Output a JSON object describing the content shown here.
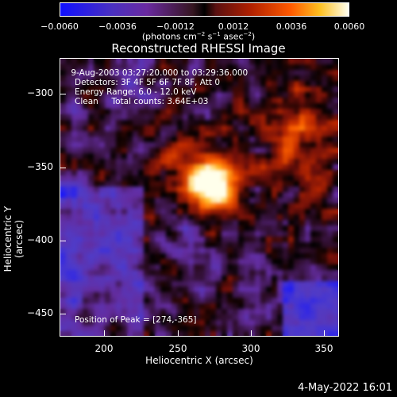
{
  "colorbar": {
    "tick_labels": [
      "−0.0060",
      "−0.0036",
      "−0.0012",
      "0.0012",
      "0.0036",
      "0.0060"
    ],
    "units_html": "(photons cm<sup>−2</sup> s<sup>−1</sup> asec<sup>−2</sup>)"
  },
  "title": "Reconstructed RHESSI Image",
  "info": {
    "time_range": " 9-Aug-2003 03:27:20.000 to 03:29:36.000",
    "detectors": "Detectors: 3F 4F 5F 6F 7F 8F, Att 0",
    "energy": "Energy Range: 6.0 - 12.0 keV",
    "clean": "Clean     Total counts: 3.64E+03",
    "peak": "Position of Peak = [274,-365]"
  },
  "axes": {
    "xlabel": "Heliocentric X (arcsec)",
    "ylabel": "Heliocentric Y (arcsec)",
    "xticks": [
      "200",
      "250",
      "300",
      "350"
    ],
    "yticks": [
      "−300",
      "−350",
      "−400",
      "−450"
    ]
  },
  "footer": {
    "date": "4-May-2022 16:01"
  }
}
